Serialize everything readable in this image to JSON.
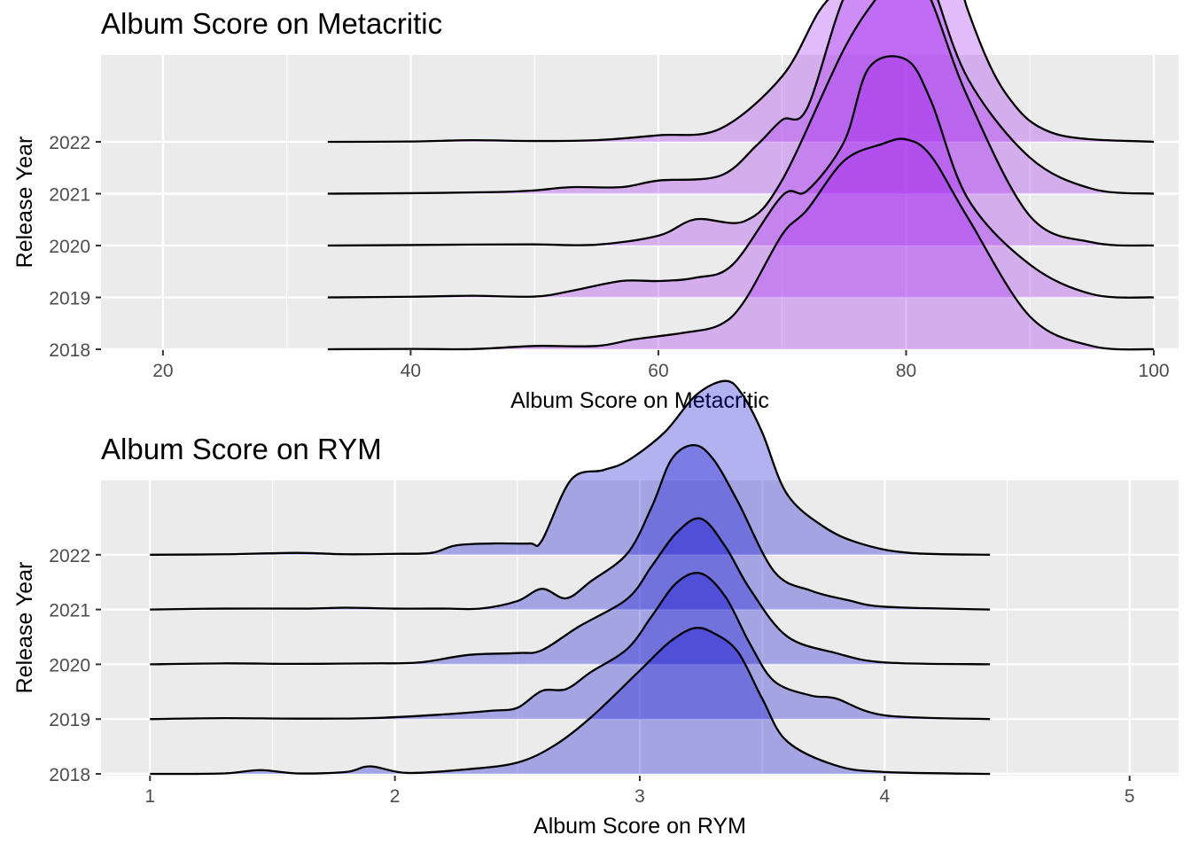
{
  "chart_data": [
    {
      "type": "ridgeline",
      "title": "Album Score on Metacritic",
      "xlabel": "Album Score on Metacritic",
      "ylabel": "Release Year",
      "xlim": [
        15,
        102
      ],
      "x_ticks": [
        20,
        40,
        60,
        80,
        100
      ],
      "grid": true,
      "legend": "none",
      "fill_color": "#A020F0",
      "categories": [
        "2018",
        "2019",
        "2020",
        "2021",
        "2022"
      ],
      "series": [
        {
          "name": "2018",
          "points": [
            [
              33.3,
              0
            ],
            [
              40,
              0.002
            ],
            [
              45,
              0.001
            ],
            [
              50,
              0.02
            ],
            [
              55,
              0.02
            ],
            [
              58,
              0.06
            ],
            [
              62,
              0.1
            ],
            [
              65,
              0.15
            ],
            [
              67,
              0.3
            ],
            [
              70,
              0.7
            ],
            [
              72,
              0.85
            ],
            [
              75,
              1.15
            ],
            [
              78,
              1.25
            ],
            [
              80,
              1.28
            ],
            [
              82,
              1.18
            ],
            [
              85,
              0.8
            ],
            [
              90,
              0.2
            ],
            [
              95,
              0.02
            ],
            [
              100,
              0
            ]
          ]
        },
        {
          "name": "2019",
          "points": [
            [
              33.3,
              0
            ],
            [
              40,
              0.004
            ],
            [
              45,
              0.01
            ],
            [
              50,
              0.005
            ],
            [
              53,
              0.04
            ],
            [
              57,
              0.1
            ],
            [
              60,
              0.1
            ],
            [
              63,
              0.12
            ],
            [
              66,
              0.2
            ],
            [
              70,
              0.62
            ],
            [
              72,
              0.65
            ],
            [
              75,
              0.95
            ],
            [
              77,
              1.4
            ],
            [
              80,
              1.45
            ],
            [
              82,
              1.2
            ],
            [
              85,
              0.6
            ],
            [
              90,
              0.2
            ],
            [
              95,
              0.02
            ],
            [
              100,
              0
            ]
          ]
        },
        {
          "name": "2020",
          "points": [
            [
              33.3,
              0
            ],
            [
              40,
              0.003
            ],
            [
              45,
              0.006
            ],
            [
              50,
              0.007
            ],
            [
              55,
              0.005
            ],
            [
              60,
              0.06
            ],
            [
              63,
              0.16
            ],
            [
              67,
              0.15
            ],
            [
              70,
              0.4
            ],
            [
              75,
              1.2
            ],
            [
              78,
              1.55
            ],
            [
              80,
              1.75
            ],
            [
              82,
              1.5
            ],
            [
              85,
              0.9
            ],
            [
              90,
              0.18
            ],
            [
              95,
              0.02
            ],
            [
              100,
              0
            ]
          ]
        },
        {
          "name": "2021",
          "points": [
            [
              33.3,
              0
            ],
            [
              40,
              0.003
            ],
            [
              47,
              0.01
            ],
            [
              50,
              0.02
            ],
            [
              53,
              0.04
            ],
            [
              57,
              0.04
            ],
            [
              60,
              0.08
            ],
            [
              65,
              0.11
            ],
            [
              68,
              0.3
            ],
            [
              70,
              0.45
            ],
            [
              72,
              0.52
            ],
            [
              75,
              1.2
            ],
            [
              78,
              1.55
            ],
            [
              80,
              1.6
            ],
            [
              82,
              1.3
            ],
            [
              85,
              0.7
            ],
            [
              90,
              0.22
            ],
            [
              95,
              0.03
            ],
            [
              100,
              0
            ]
          ]
        },
        {
          "name": "2022",
          "points": [
            [
              33.3,
              0
            ],
            [
              40,
              0.002
            ],
            [
              45,
              0.01
            ],
            [
              50,
              0.005
            ],
            [
              55,
              0.01
            ],
            [
              60,
              0.04
            ],
            [
              65,
              0.08
            ],
            [
              70,
              0.4
            ],
            [
              73,
              0.8
            ],
            [
              75,
              0.95
            ],
            [
              77,
              1.05
            ],
            [
              79,
              1.3
            ],
            [
              81,
              1.45
            ],
            [
              83,
              1.35
            ],
            [
              85,
              0.8
            ],
            [
              88,
              0.3
            ],
            [
              92,
              0.05
            ],
            [
              100,
              0
            ]
          ]
        }
      ]
    },
    {
      "type": "ridgeline",
      "title": "Album Score on RYM",
      "xlabel": "Album Score on RYM",
      "ylabel": "Release Year",
      "xlim": [
        0.8,
        5.2
      ],
      "x_ticks": [
        1,
        2,
        3,
        4,
        5
      ],
      "grid": true,
      "legend": "none",
      "fill_color": "#0000CD",
      "categories": [
        "2018",
        "2019",
        "2020",
        "2021",
        "2022"
      ],
      "series": [
        {
          "name": "2018",
          "points": [
            [
              1.0,
              0
            ],
            [
              1.3,
              0.005
            ],
            [
              1.45,
              0.04
            ],
            [
              1.6,
              0.005
            ],
            [
              1.8,
              0.02
            ],
            [
              1.9,
              0.08
            ],
            [
              2.05,
              0.01
            ],
            [
              2.3,
              0.05
            ],
            [
              2.5,
              0.12
            ],
            [
              2.65,
              0.3
            ],
            [
              2.8,
              0.6
            ],
            [
              3.0,
              1.1
            ],
            [
              3.12,
              1.4
            ],
            [
              3.22,
              1.55
            ],
            [
              3.3,
              1.5
            ],
            [
              3.4,
              1.3
            ],
            [
              3.5,
              0.8
            ],
            [
              3.6,
              0.35
            ],
            [
              3.8,
              0.09
            ],
            [
              4.0,
              0.02
            ],
            [
              4.43,
              0
            ]
          ]
        },
        {
          "name": "2019",
          "points": [
            [
              1.0,
              0
            ],
            [
              1.3,
              0.01
            ],
            [
              1.6,
              0.005
            ],
            [
              1.9,
              0.01
            ],
            [
              2.2,
              0.05
            ],
            [
              2.4,
              0.09
            ],
            [
              2.5,
              0.12
            ],
            [
              2.6,
              0.3
            ],
            [
              2.7,
              0.32
            ],
            [
              2.8,
              0.5
            ],
            [
              2.95,
              0.75
            ],
            [
              3.05,
              1.1
            ],
            [
              3.15,
              1.45
            ],
            [
              3.25,
              1.55
            ],
            [
              3.35,
              1.3
            ],
            [
              3.45,
              0.8
            ],
            [
              3.55,
              0.4
            ],
            [
              3.7,
              0.25
            ],
            [
              3.8,
              0.22
            ],
            [
              4.0,
              0.04
            ],
            [
              4.43,
              0
            ]
          ]
        },
        {
          "name": "2020",
          "points": [
            [
              1.0,
              0
            ],
            [
              1.3,
              0.01
            ],
            [
              1.6,
              0.005
            ],
            [
              1.9,
              0.01
            ],
            [
              2.1,
              0.02
            ],
            [
              2.3,
              0.1
            ],
            [
              2.5,
              0.12
            ],
            [
              2.6,
              0.15
            ],
            [
              2.75,
              0.4
            ],
            [
              2.95,
              0.7
            ],
            [
              3.05,
              1.05
            ],
            [
              3.15,
              1.4
            ],
            [
              3.25,
              1.55
            ],
            [
              3.35,
              1.25
            ],
            [
              3.45,
              0.8
            ],
            [
              3.6,
              0.3
            ],
            [
              3.8,
              0.12
            ],
            [
              4.0,
              0.02
            ],
            [
              4.43,
              0
            ]
          ]
        },
        {
          "name": "2021",
          "points": [
            [
              1.0,
              0
            ],
            [
              1.3,
              0.01
            ],
            [
              1.65,
              0.01
            ],
            [
              1.8,
              0.02
            ],
            [
              2.0,
              0.01
            ],
            [
              2.2,
              0.01
            ],
            [
              2.35,
              0.01
            ],
            [
              2.5,
              0.09
            ],
            [
              2.6,
              0.22
            ],
            [
              2.7,
              0.12
            ],
            [
              2.8,
              0.3
            ],
            [
              2.95,
              0.6
            ],
            [
              3.05,
              1.1
            ],
            [
              3.13,
              1.6
            ],
            [
              3.22,
              1.75
            ],
            [
              3.3,
              1.6
            ],
            [
              3.4,
              1.15
            ],
            [
              3.55,
              0.4
            ],
            [
              3.7,
              0.2
            ],
            [
              3.85,
              0.1
            ],
            [
              4.0,
              0.03
            ],
            [
              4.43,
              0
            ]
          ]
        },
        {
          "name": "2022",
          "points": [
            [
              1.0,
              0
            ],
            [
              1.3,
              0.005
            ],
            [
              1.6,
              0.02
            ],
            [
              1.8,
              0.005
            ],
            [
              2.0,
              0.01
            ],
            [
              2.15,
              0.02
            ],
            [
              2.25,
              0.1
            ],
            [
              2.4,
              0.12
            ],
            [
              2.55,
              0.12
            ],
            [
              2.6,
              0.15
            ],
            [
              2.72,
              0.8
            ],
            [
              2.85,
              0.9
            ],
            [
              2.95,
              1.0
            ],
            [
              3.1,
              1.3
            ],
            [
              3.23,
              1.7
            ],
            [
              3.35,
              1.85
            ],
            [
              3.42,
              1.7
            ],
            [
              3.5,
              1.3
            ],
            [
              3.6,
              0.65
            ],
            [
              3.75,
              0.3
            ],
            [
              3.9,
              0.12
            ],
            [
              4.1,
              0.02
            ],
            [
              4.43,
              0
            ]
          ]
        }
      ]
    }
  ]
}
